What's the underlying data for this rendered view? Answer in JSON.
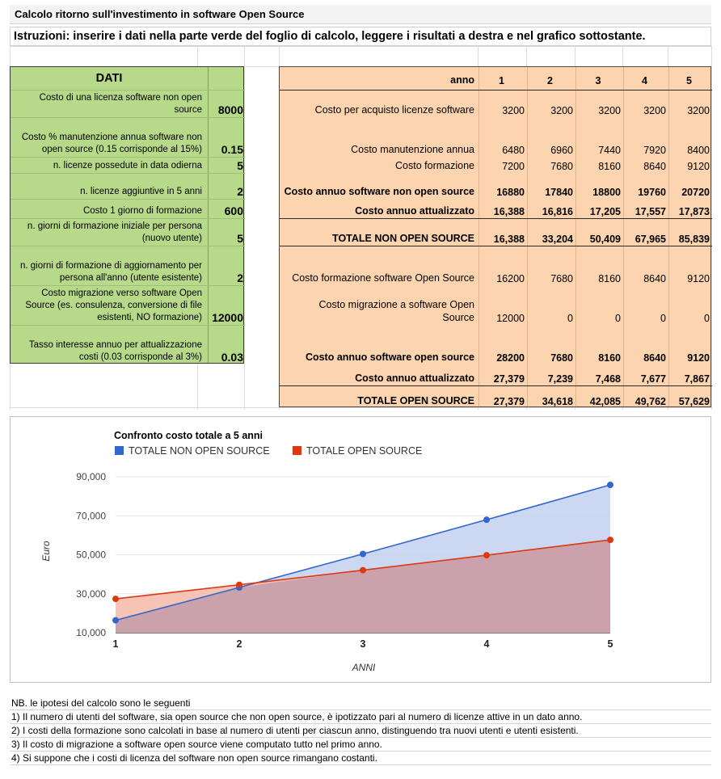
{
  "title": "Calcolo ritorno sull'investimento in software Open Source",
  "instructions": "Istruzioni: inserire i dati nella parte verde del foglio di calcolo, leggere i risultati a destra e nel grafico sottostante.",
  "inputs": {
    "header": "DATI",
    "rows": [
      {
        "label": "Costo di una licenza software non open source",
        "value": "8000"
      },
      {
        "label": "Costo % manutenzione annua software non open source (0.15 corrisponde al 15%)",
        "value": "0.15"
      },
      {
        "label": "n. licenze possedute in data odierna",
        "value": "5"
      },
      {
        "label": "n. licenze aggiuntive in 5 anni",
        "value": "2"
      },
      {
        "label": "Costo 1 giorno di formazione",
        "value": "600"
      },
      {
        "label": "n. giorni di formazione iniziale per persona (nuovo utente)",
        "value": "5"
      },
      {
        "label": "n. giorni di formazione di aggiornamento per persona all'anno (utente esistente)",
        "value": "2"
      },
      {
        "label": "Costo migrazione verso software Open Source (es. consulenza, conversione di file esistenti, NO formazione)",
        "value": "12000"
      },
      {
        "label": "Tasso interesse annuo per attualizzazione costi (0.03 corrisponde al 3%)",
        "value": "0.03"
      }
    ]
  },
  "results": {
    "header_label": "anno",
    "years": [
      "1",
      "2",
      "3",
      "4",
      "5"
    ],
    "rows": [
      {
        "label": "Costo per acquisto licenze software",
        "values": [
          "3200",
          "3200",
          "3200",
          "3200",
          "3200"
        ],
        "bold": false
      },
      {
        "label": "Costo manutenzione annua",
        "values": [
          "6480",
          "6960",
          "7440",
          "7920",
          "8400"
        ],
        "bold": false
      },
      {
        "label": "Costo formazione",
        "values": [
          "7200",
          "7680",
          "8160",
          "8640",
          "9120"
        ],
        "bold": false
      },
      {
        "label": "Costo annuo software non open source",
        "values": [
          "16880",
          "17840",
          "18800",
          "19760",
          "20720"
        ],
        "bold": true
      },
      {
        "label": "Costo annuo attualizzato",
        "values": [
          "16,388",
          "16,816",
          "17,205",
          "17,557",
          "17,873"
        ],
        "bold": true
      },
      {
        "label": "TOTALE NON OPEN SOURCE",
        "values": [
          "16,388",
          "33,204",
          "50,409",
          "67,965",
          "85,839"
        ],
        "bold": true
      },
      {
        "label": "Costo formazione software Open Source",
        "values": [
          "16200",
          "7680",
          "8160",
          "8640",
          "9120"
        ],
        "bold": false
      },
      {
        "label": "Costo migrazione a software Open Source",
        "values": [
          "12000",
          "0",
          "0",
          "0",
          "0"
        ],
        "bold": false
      },
      {
        "label": "Costo annuo software open source",
        "values": [
          "28200",
          "7680",
          "8160",
          "8640",
          "9120"
        ],
        "bold": true
      },
      {
        "label": "Costo annuo attualizzato",
        "values": [
          "27,379",
          "7,239",
          "7,468",
          "7,677",
          "7,867"
        ],
        "bold": true
      },
      {
        "label": "TOTALE OPEN SOURCE",
        "values": [
          "27,379",
          "34,618",
          "42,085",
          "49,762",
          "57,629"
        ],
        "bold": true
      }
    ]
  },
  "chart_data": {
    "type": "area",
    "title": "Confronto costo totale a 5 anni",
    "xlabel": "ANNI",
    "ylabel": "Euro",
    "x": [
      1,
      2,
      3,
      4,
      5
    ],
    "y_ticks": [
      "10,000",
      "30,000",
      "50,000",
      "70,000",
      "90,000"
    ],
    "ylim": [
      10000,
      90000
    ],
    "legend_position": "top-left",
    "series": [
      {
        "name": "TOTALE NON OPEN SOURCE",
        "color": "#3366cc",
        "fill": "#c3d0ee",
        "values": [
          16388,
          33204,
          50409,
          67965,
          85839
        ]
      },
      {
        "name": "TOTALE OPEN SOURCE",
        "color": "#dc3912",
        "fill": "#f4b8a8",
        "values": [
          27379,
          34618,
          42085,
          49762,
          57629
        ]
      }
    ],
    "overlap_fill": "#c8a0ab"
  },
  "notes": [
    "NB. le ipotesi del calcolo sono le seguenti",
    "1) Il numero di utenti del software, sia open source che non open source, è ipotizzato pari al numero di licenze attive in un dato anno.",
    "2) I costi della formazione sono calcolati in base al numero di utenti per ciascun anno, distinguendo tra nuovi utenti e utenti esistenti.",
    "3) Il costo di migrazione a software open source viene computato tutto nel primo anno.",
    "4) Si suppone che i costi di licenza del software non open source rimangano costanti."
  ]
}
